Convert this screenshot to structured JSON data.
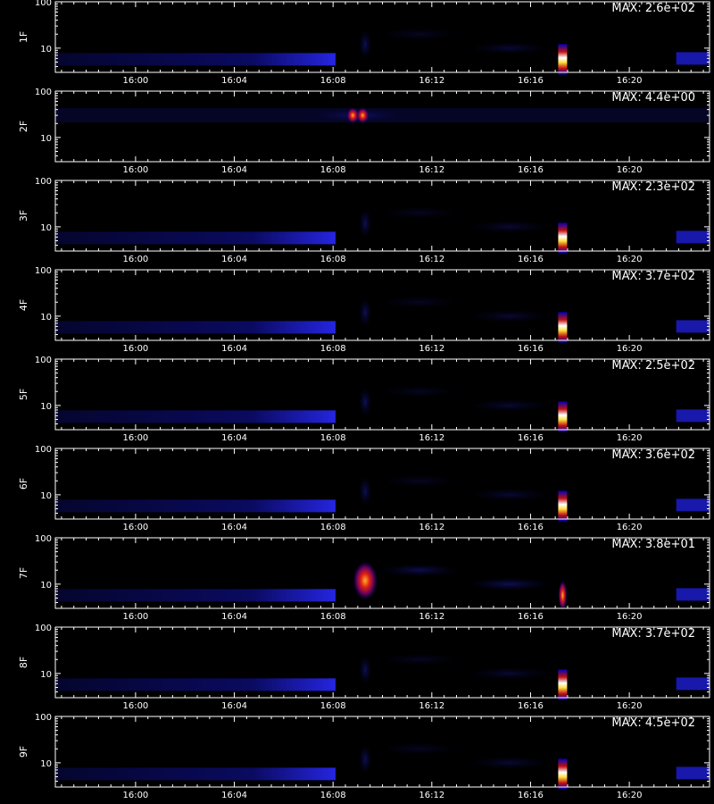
{
  "colors": {
    "background": "#000000",
    "axis": "#ffffff",
    "colormap": "black-blue-red-yellow-white"
  },
  "chart_data": [
    {
      "type": "heatmap",
      "ylabel": "1F",
      "max_label": "MAX: 2.6e+02"
    },
    {
      "type": "heatmap",
      "ylabel": "2F",
      "max_label": "MAX: 4.4e+00"
    },
    {
      "type": "heatmap",
      "ylabel": "3F",
      "max_label": "MAX: 2.3e+02"
    },
    {
      "type": "heatmap",
      "ylabel": "4F",
      "max_label": "MAX: 3.7e+02"
    },
    {
      "type": "heatmap",
      "ylabel": "5F",
      "max_label": "MAX: 2.5e+02"
    },
    {
      "type": "heatmap",
      "ylabel": "6F",
      "max_label": "MAX: 3.6e+02"
    },
    {
      "type": "heatmap",
      "ylabel": "7F",
      "max_label": "MAX: 3.8e+01"
    },
    {
      "type": "heatmap",
      "ylabel": "8F",
      "max_label": "MAX: 3.7e+02"
    },
    {
      "type": "heatmap",
      "ylabel": "9F",
      "max_label": "MAX: 4.5e+02"
    }
  ],
  "shared_axes": {
    "x_tick_labels": [
      "16:00",
      "16:04",
      "16:08",
      "16:12",
      "16:16",
      "16:20"
    ],
    "x_tick_minutes": [
      0,
      4,
      8,
      12,
      16,
      20
    ],
    "xlim_minutes": [
      -3.25,
      23.25
    ],
    "y_scale": "log",
    "ylim": [
      3,
      100
    ],
    "y_tick_labels": [
      "10",
      "100"
    ],
    "y_tick_values": [
      10,
      100
    ]
  }
}
